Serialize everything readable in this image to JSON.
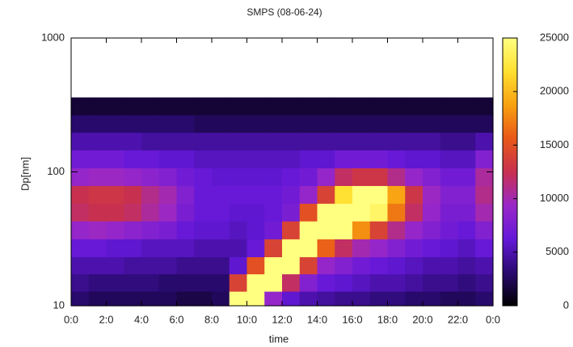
{
  "chart_data": {
    "type": "heatmap",
    "title": "SMPS (08-06-24)",
    "xlabel": "time",
    "ylabel": "Dp[nm]",
    "x": [
      0.5,
      1.5,
      2.5,
      3.5,
      4.5,
      5.5,
      6.5,
      7.5,
      8.5,
      9.5,
      10.5,
      11.5,
      12.5,
      13.5,
      14.5,
      15.5,
      16.5,
      17.5,
      18.5,
      19.5,
      20.5,
      21.5,
      22.5,
      23.5
    ],
    "y": [
      11,
      15,
      20,
      27,
      37,
      50,
      68,
      92,
      125,
      170,
      230,
      310
    ],
    "z": [
      [
        3000,
        4000,
        5000,
        6500,
        9000,
        12000,
        12500,
        9000,
        7000,
        5000,
        3000,
        1500
      ],
      [
        2500,
        3500,
        5000,
        6500,
        9500,
        12500,
        13000,
        9500,
        7000,
        5000,
        3000,
        1500
      ],
      [
        2500,
        3500,
        5000,
        6000,
        9000,
        12500,
        13000,
        9500,
        7000,
        5000,
        3000,
        1500
      ],
      [
        2500,
        3500,
        4500,
        6000,
        8500,
        12000,
        12500,
        9000,
        6500,
        5000,
        3000,
        1500
      ],
      [
        2500,
        3500,
        4500,
        5500,
        8000,
        10500,
        11000,
        8500,
        6500,
        4500,
        3000,
        1500
      ],
      [
        2500,
        3000,
        4500,
        5500,
        7500,
        9500,
        10000,
        8000,
        6000,
        4500,
        3000,
        1500
      ],
      [
        2000,
        3000,
        4000,
        5500,
        6500,
        7500,
        8000,
        7000,
        6000,
        4500,
        3000,
        1500
      ],
      [
        2000,
        3000,
        4000,
        5000,
        6000,
        6500,
        6500,
        6500,
        5500,
        4500,
        2500,
        1500
      ],
      [
        2500,
        3000,
        4000,
        5000,
        6000,
        6500,
        6500,
        6000,
        5500,
        4500,
        2500,
        1500
      ],
      [
        25000,
        14000,
        6000,
        5000,
        5500,
        6000,
        6500,
        6000,
        5500,
        4500,
        2500,
        1500
      ],
      [
        25000,
        25000,
        15000,
        6500,
        6000,
        6000,
        6500,
        6000,
        5500,
        4500,
        2500,
        1500
      ],
      [
        9000,
        25000,
        25000,
        14000,
        7000,
        6500,
        6500,
        6000,
        5500,
        4500,
        2500,
        1500
      ],
      [
        6000,
        12000,
        25000,
        25000,
        14000,
        7500,
        7000,
        6500,
        5500,
        4500,
        2500,
        1500
      ],
      [
        5000,
        8000,
        14000,
        25000,
        25000,
        15000,
        9000,
        7000,
        6000,
        4500,
        2500,
        1500
      ],
      [
        4500,
        6500,
        9000,
        16000,
        25000,
        25000,
        14000,
        9000,
        6000,
        4500,
        2500,
        1500
      ],
      [
        4000,
        6000,
        8000,
        12000,
        25000,
        25000,
        22000,
        12000,
        7000,
        4500,
        2500,
        1500
      ],
      [
        4000,
        5500,
        7000,
        10000,
        18000,
        25000,
        25000,
        13000,
        7000,
        4500,
        2500,
        1500
      ],
      [
        3500,
        5000,
        6500,
        9000,
        14000,
        24000,
        25000,
        13000,
        7000,
        4500,
        2500,
        1500
      ],
      [
        3500,
        5000,
        6000,
        8000,
        11000,
        17000,
        19000,
        11000,
        6500,
        4500,
        2500,
        1500
      ],
      [
        3000,
        4500,
        5500,
        7000,
        9000,
        12000,
        13000,
        9000,
        6000,
        4500,
        2500,
        1500
      ],
      [
        3000,
        4000,
        5000,
        6500,
        8000,
        9000,
        9500,
        8000,
        6000,
        4500,
        2500,
        1500
      ],
      [
        2500,
        4000,
        5000,
        6000,
        7000,
        7500,
        8000,
        7000,
        5500,
        4000,
        2500,
        1500
      ],
      [
        2500,
        3500,
        4500,
        5500,
        6500,
        7500,
        8000,
        7000,
        5500,
        4000,
        2500,
        1500
      ],
      [
        3000,
        4000,
        5000,
        6500,
        8000,
        10000,
        11000,
        10500,
        8000,
        5000,
        2500,
        1500
      ]
    ],
    "xlim": [
      0,
      24
    ],
    "xticks": [
      {
        "value": 0,
        "label": "0:0"
      },
      {
        "value": 2,
        "label": "2:0"
      },
      {
        "value": 4,
        "label": "4:0"
      },
      {
        "value": 6,
        "label": "6:0"
      },
      {
        "value": 8,
        "label": "8:0"
      },
      {
        "value": 10,
        "label": "10:0"
      },
      {
        "value": 12,
        "label": "12:0"
      },
      {
        "value": 14,
        "label": "14:0"
      },
      {
        "value": 16,
        "label": "16:0"
      },
      {
        "value": 18,
        "label": "18:0"
      },
      {
        "value": 20,
        "label": "20:0"
      },
      {
        "value": 22,
        "label": "22:0"
      },
      {
        "value": 24,
        "label": "0:0"
      }
    ],
    "ylim": [
      10,
      1000
    ],
    "yticks": [
      10,
      100,
      1000
    ],
    "ylog": true,
    "clim": [
      0,
      25000
    ],
    "cticks": [
      0,
      5000,
      10000,
      15000,
      20000,
      25000
    ],
    "colormap": [
      "#000000",
      "#2a0a70",
      "#6418d8",
      "#9a28c8",
      "#c83050",
      "#e85818",
      "#f8a010",
      "#ffe030",
      "#ffff80"
    ],
    "over_color": "#ffffff"
  }
}
